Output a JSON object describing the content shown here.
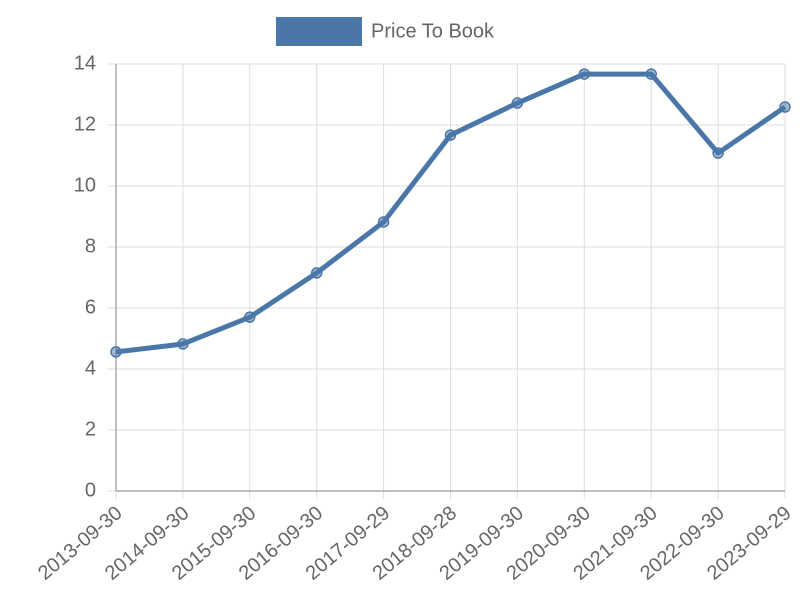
{
  "chart_data": {
    "type": "line",
    "categories": [
      "2013-09-30",
      "2014-09-30",
      "2015-09-30",
      "2016-09-30",
      "2017-09-29",
      "2018-09-28",
      "2019-09-30",
      "2020-09-30",
      "2021-09-30",
      "2022-09-30",
      "2023-09-29"
    ],
    "series": [
      {
        "name": "Price To Book",
        "color": "#4a76a8",
        "values": [
          4.56,
          4.82,
          5.7,
          7.15,
          8.82,
          11.67,
          12.72,
          13.67,
          13.67,
          11.08,
          12.59
        ]
      }
    ],
    "ylim": [
      0,
      14
    ],
    "yticks": [
      0,
      2,
      4,
      6,
      8,
      10,
      12,
      14
    ],
    "grid": true,
    "legend": "top"
  }
}
